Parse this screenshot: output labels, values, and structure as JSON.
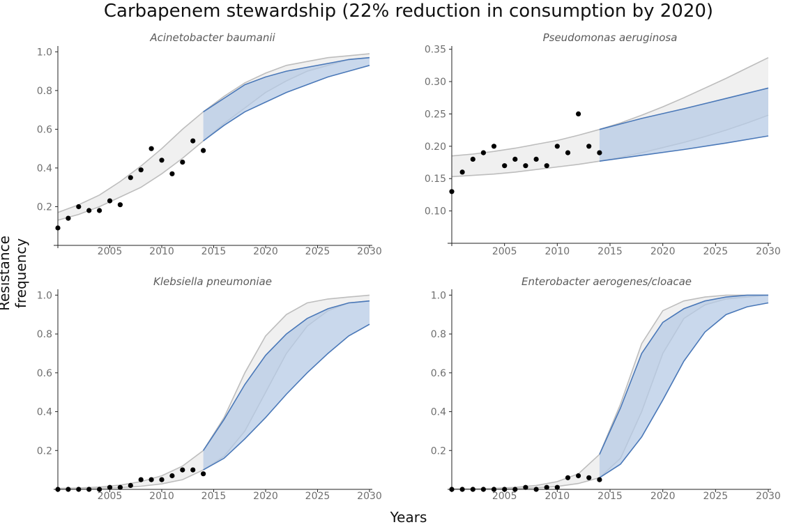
{
  "title": "Carbapenem stewardship (22% reduction in consumption by 2020)",
  "xlabel": "Years",
  "ylabel": "Resistance frequency",
  "colors": {
    "historic_band": "#bdbdbd",
    "historic_fill": "#ebebeb",
    "projection_line": "#4a78b8",
    "projection_fill": "#b7cbe6",
    "points": "#000000"
  },
  "chart_data": [
    {
      "type": "scatter",
      "title": "Acinetobacter baumanii",
      "xlim": [
        2000,
        2030
      ],
      "ylim": [
        0,
        1.03
      ],
      "x_ticks": [
        2005,
        2010,
        2015,
        2020,
        2025,
        2030
      ],
      "y_ticks": [
        0.2,
        0.4,
        0.6,
        0.8,
        1.0
      ],
      "y_tick_labels": [
        "0.2",
        "0.4",
        "0.6",
        "0.8",
        "1.0"
      ],
      "projection_start": 2014,
      "points": {
        "x": [
          2000,
          2001,
          2002,
          2003,
          2004,
          2005,
          2006,
          2007,
          2008,
          2009,
          2010,
          2011,
          2012,
          2013,
          2014
        ],
        "y": [
          0.09,
          0.14,
          0.2,
          0.18,
          0.18,
          0.23,
          0.21,
          0.35,
          0.39,
          0.5,
          0.44,
          0.37,
          0.43,
          0.54,
          0.49
        ]
      },
      "grey_band": {
        "x": [
          2000,
          2002,
          2004,
          2006,
          2008,
          2010,
          2012,
          2014,
          2016,
          2018,
          2020,
          2022,
          2024,
          2026,
          2028,
          2030
        ],
        "upper": [
          0.17,
          0.21,
          0.26,
          0.33,
          0.41,
          0.5,
          0.6,
          0.69,
          0.77,
          0.84,
          0.89,
          0.93,
          0.95,
          0.97,
          0.98,
          0.99
        ],
        "lower": [
          0.13,
          0.16,
          0.2,
          0.25,
          0.3,
          0.37,
          0.45,
          0.54,
          0.63,
          0.71,
          0.79,
          0.85,
          0.9,
          0.93,
          0.96,
          0.97
        ]
      },
      "blue_band": {
        "x": [
          2014,
          2016,
          2018,
          2020,
          2022,
          2024,
          2026,
          2028,
          2030
        ],
        "upper": [
          0.69,
          0.76,
          0.83,
          0.87,
          0.9,
          0.92,
          0.94,
          0.96,
          0.97
        ],
        "lower": [
          0.54,
          0.62,
          0.69,
          0.74,
          0.79,
          0.83,
          0.87,
          0.9,
          0.93
        ]
      }
    },
    {
      "type": "scatter",
      "title": "Pseudomonas aeruginosa",
      "xlim": [
        2000,
        2030
      ],
      "ylim": [
        0.05,
        0.355
      ],
      "x_ticks": [
        2005,
        2010,
        2015,
        2020,
        2025,
        2030
      ],
      "y_ticks": [
        0.1,
        0.15,
        0.2,
        0.25,
        0.3,
        0.35
      ],
      "y_tick_labels": [
        "0.10",
        "0.15",
        "0.20",
        "0.25",
        "0.30",
        "0.35"
      ],
      "projection_start": 2014,
      "points": {
        "x": [
          2000,
          2001,
          2002,
          2003,
          2004,
          2005,
          2006,
          2007,
          2008,
          2009,
          2010,
          2011,
          2012,
          2013,
          2014
        ],
        "y": [
          0.13,
          0.16,
          0.18,
          0.19,
          0.2,
          0.17,
          0.18,
          0.17,
          0.18,
          0.17,
          0.2,
          0.19,
          0.25,
          0.2,
          0.19
        ]
      },
      "grey_band": {
        "x": [
          2000,
          2002,
          2004,
          2006,
          2008,
          2010,
          2012,
          2014,
          2016,
          2018,
          2020,
          2022,
          2024,
          2026,
          2028,
          2030
        ],
        "upper": [
          0.185,
          0.188,
          0.192,
          0.197,
          0.203,
          0.209,
          0.217,
          0.226,
          0.236,
          0.248,
          0.261,
          0.275,
          0.29,
          0.305,
          0.321,
          0.337
        ],
        "lower": [
          0.153,
          0.155,
          0.157,
          0.16,
          0.164,
          0.168,
          0.172,
          0.177,
          0.183,
          0.19,
          0.198,
          0.206,
          0.215,
          0.225,
          0.236,
          0.248
        ]
      },
      "blue_band": {
        "x": [
          2014,
          2018,
          2022,
          2026,
          2030
        ],
        "upper": [
          0.226,
          0.243,
          0.258,
          0.274,
          0.29
        ],
        "lower": [
          0.177,
          0.186,
          0.195,
          0.205,
          0.216
        ]
      }
    },
    {
      "type": "scatter",
      "title": "Klebsiella pneumoniae",
      "xlim": [
        2000,
        2030
      ],
      "ylim": [
        0,
        1.03
      ],
      "x_ticks": [
        2005,
        2010,
        2015,
        2020,
        2025,
        2030
      ],
      "y_ticks": [
        0.2,
        0.4,
        0.6,
        0.8,
        1.0
      ],
      "y_tick_labels": [
        "0.2",
        "0.4",
        "0.6",
        "0.8",
        "1.0"
      ],
      "projection_start": 2014,
      "points": {
        "x": [
          2000,
          2001,
          2002,
          2003,
          2004,
          2005,
          2006,
          2007,
          2008,
          2009,
          2010,
          2011,
          2012,
          2013,
          2014
        ],
        "y": [
          0.0,
          0.0,
          0.0,
          0.0,
          0.0,
          0.01,
          0.01,
          0.02,
          0.05,
          0.05,
          0.05,
          0.07,
          0.1,
          0.1,
          0.08
        ]
      },
      "grey_band": {
        "x": [
          2000,
          2002,
          2004,
          2006,
          2008,
          2010,
          2012,
          2014,
          2016,
          2018,
          2020,
          2022,
          2024,
          2026,
          2028,
          2030
        ],
        "upper": [
          0.005,
          0.007,
          0.012,
          0.022,
          0.04,
          0.07,
          0.12,
          0.2,
          0.37,
          0.6,
          0.79,
          0.9,
          0.96,
          0.98,
          0.99,
          1.0
        ],
        "lower": [
          0.002,
          0.003,
          0.005,
          0.009,
          0.016,
          0.028,
          0.05,
          0.1,
          0.17,
          0.3,
          0.5,
          0.7,
          0.84,
          0.92,
          0.96,
          0.97
        ]
      },
      "blue_band": {
        "x": [
          2014,
          2016,
          2018,
          2020,
          2022,
          2024,
          2026,
          2028,
          2030
        ],
        "upper": [
          0.2,
          0.36,
          0.54,
          0.69,
          0.8,
          0.88,
          0.93,
          0.96,
          0.97
        ],
        "lower": [
          0.1,
          0.16,
          0.26,
          0.37,
          0.49,
          0.6,
          0.7,
          0.79,
          0.85
        ]
      }
    },
    {
      "type": "scatter",
      "title": "Enterobacter aerogenes/cloacae",
      "xlim": [
        2000,
        2030
      ],
      "ylim": [
        0,
        1.03
      ],
      "x_ticks": [
        2005,
        2010,
        2015,
        2020,
        2025,
        2030
      ],
      "y_ticks": [
        0.2,
        0.4,
        0.6,
        0.8,
        1.0
      ],
      "y_tick_labels": [
        "0.2",
        "0.4",
        "0.6",
        "0.8",
        "1.0"
      ],
      "projection_start": 2014,
      "points": {
        "x": [
          2000,
          2001,
          2002,
          2003,
          2004,
          2005,
          2006,
          2007,
          2008,
          2009,
          2010,
          2011,
          2012,
          2013,
          2014
        ],
        "y": [
          0.0,
          0.0,
          0.0,
          0.0,
          0.0,
          0.0,
          0.0,
          0.01,
          0.0,
          0.01,
          0.01,
          0.06,
          0.07,
          0.06,
          0.05
        ]
      },
      "grey_band": {
        "x": [
          2000,
          2002,
          2004,
          2006,
          2008,
          2010,
          2012,
          2014,
          2016,
          2018,
          2020,
          2022,
          2024,
          2026,
          2028,
          2030
        ],
        "upper": [
          0.002,
          0.003,
          0.005,
          0.01,
          0.02,
          0.04,
          0.08,
          0.18,
          0.44,
          0.75,
          0.92,
          0.97,
          0.99,
          1.0,
          1.0,
          1.0
        ],
        "lower": [
          0.001,
          0.001,
          0.002,
          0.004,
          0.008,
          0.015,
          0.03,
          0.06,
          0.16,
          0.4,
          0.7,
          0.88,
          0.95,
          0.98,
          0.99,
          1.0
        ]
      },
      "blue_band": {
        "x": [
          2014,
          2016,
          2018,
          2020,
          2022,
          2024,
          2026,
          2028,
          2030
        ],
        "upper": [
          0.18,
          0.42,
          0.7,
          0.86,
          0.93,
          0.97,
          0.99,
          1.0,
          1.0
        ],
        "lower": [
          0.06,
          0.13,
          0.27,
          0.46,
          0.66,
          0.81,
          0.9,
          0.94,
          0.96
        ]
      }
    }
  ]
}
